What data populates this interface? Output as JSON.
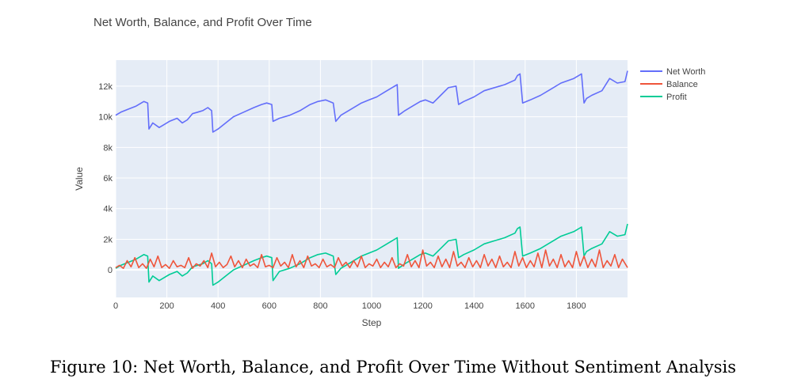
{
  "chart_data": {
    "type": "line",
    "title": "Net Worth, Balance, and Profit Over Time",
    "xlabel": "Step",
    "ylabel": "Value",
    "xlim": [
      0,
      2000
    ],
    "ylim": [
      -1800,
      13700
    ],
    "x_ticks": [
      0,
      200,
      400,
      600,
      800,
      1000,
      1200,
      1400,
      1600,
      1800
    ],
    "y_ticks": [
      0,
      2000,
      4000,
      6000,
      8000,
      10000,
      12000
    ],
    "y_tick_labels": [
      "0",
      "2k",
      "4k",
      "6k",
      "8k",
      "10k",
      "12k"
    ],
    "grid": true,
    "legend_position": "top-right",
    "series": [
      {
        "name": "Net Worth",
        "color": "#636efa",
        "x": [
          0,
          20,
          50,
          80,
          110,
          125,
          130,
          145,
          170,
          190,
          210,
          240,
          260,
          280,
          300,
          320,
          340,
          360,
          375,
          380,
          400,
          430,
          460,
          500,
          540,
          570,
          590,
          610,
          615,
          640,
          680,
          720,
          760,
          790,
          820,
          850,
          860,
          880,
          920,
          960,
          990,
          1020,
          1050,
          1080,
          1100,
          1105,
          1130,
          1160,
          1190,
          1210,
          1240,
          1270,
          1300,
          1330,
          1340,
          1360,
          1400,
          1440,
          1480,
          1520,
          1560,
          1570,
          1580,
          1590,
          1620,
          1660,
          1700,
          1740,
          1790,
          1820,
          1830,
          1840,
          1860,
          1900,
          1930,
          1960,
          1990,
          2000
        ],
        "y": [
          10100,
          10300,
          10500,
          10700,
          11000,
          10900,
          9200,
          9600,
          9300,
          9500,
          9700,
          9900,
          9600,
          9800,
          10200,
          10300,
          10400,
          10600,
          10400,
          9000,
          9200,
          9600,
          10000,
          10300,
          10600,
          10800,
          10900,
          10800,
          9700,
          9900,
          10100,
          10400,
          10800,
          11000,
          11100,
          10900,
          9700,
          10100,
          10500,
          10900,
          11100,
          11300,
          11600,
          11900,
          12100,
          10100,
          10400,
          10700,
          11000,
          11100,
          10900,
          11400,
          11900,
          12000,
          10800,
          11000,
          11300,
          11700,
          11900,
          12100,
          12400,
          12700,
          12800,
          10900,
          11100,
          11400,
          11800,
          12200,
          12500,
          12800,
          10900,
          11200,
          11400,
          11700,
          12500,
          12200,
          12300,
          13000
        ]
      },
      {
        "name": "Balance",
        "color": "#ef553b",
        "x": [
          0,
          15,
          30,
          45,
          60,
          75,
          90,
          105,
          120,
          135,
          150,
          165,
          180,
          195,
          210,
          225,
          240,
          255,
          270,
          285,
          300,
          315,
          330,
          345,
          360,
          375,
          390,
          405,
          420,
          435,
          450,
          465,
          480,
          495,
          510,
          525,
          540,
          555,
          570,
          585,
          600,
          615,
          630,
          645,
          660,
          675,
          690,
          705,
          720,
          735,
          750,
          765,
          780,
          795,
          810,
          825,
          840,
          855,
          870,
          885,
          900,
          915,
          930,
          945,
          960,
          975,
          990,
          1005,
          1020,
          1035,
          1050,
          1065,
          1080,
          1095,
          1110,
          1125,
          1140,
          1155,
          1170,
          1185,
          1200,
          1215,
          1230,
          1245,
          1260,
          1275,
          1290,
          1305,
          1320,
          1335,
          1350,
          1365,
          1380,
          1395,
          1410,
          1425,
          1440,
          1455,
          1470,
          1485,
          1500,
          1515,
          1530,
          1545,
          1560,
          1575,
          1590,
          1605,
          1620,
          1635,
          1650,
          1665,
          1680,
          1695,
          1710,
          1725,
          1740,
          1755,
          1770,
          1785,
          1800,
          1815,
          1830,
          1845,
          1860,
          1875,
          1890,
          1905,
          1920,
          1935,
          1950,
          1965,
          1980,
          2000
        ],
        "y": [
          150,
          300,
          100,
          600,
          200,
          800,
          150,
          400,
          100,
          700,
          200,
          900,
          150,
          350,
          100,
          600,
          200,
          300,
          150,
          800,
          100,
          400,
          250,
          600,
          150,
          1100,
          200,
          500,
          150,
          350,
          900,
          200,
          600,
          150,
          700,
          250,
          400,
          150,
          1000,
          200,
          300,
          150,
          800,
          250,
          500,
          150,
          1000,
          200,
          600,
          150,
          900,
          250,
          400,
          150,
          700,
          200,
          350,
          150,
          800,
          250,
          500,
          150,
          600,
          200,
          900,
          150,
          400,
          250,
          700,
          150,
          500,
          200,
          800,
          150,
          400,
          250,
          1000,
          200,
          600,
          150,
          1300,
          250,
          500,
          150,
          900,
          200,
          700,
          150,
          1200,
          250,
          500,
          150,
          800,
          200,
          600,
          150,
          1000,
          250,
          700,
          150,
          900,
          200,
          500,
          150,
          1200,
          250,
          800,
          150,
          600,
          200,
          1100,
          150,
          1300,
          250,
          700,
          150,
          1000,
          200,
          600,
          150,
          1200,
          250,
          900,
          150,
          700,
          200,
          1300,
          150,
          600,
          250,
          1000,
          150,
          700,
          150
        ]
      },
      {
        "name": "Profit",
        "color": "#00cc96",
        "x": [
          0,
          20,
          50,
          80,
          110,
          125,
          130,
          145,
          170,
          190,
          210,
          240,
          260,
          280,
          300,
          320,
          340,
          360,
          375,
          380,
          400,
          430,
          460,
          500,
          540,
          570,
          590,
          610,
          615,
          640,
          680,
          720,
          760,
          790,
          820,
          850,
          860,
          880,
          920,
          960,
          990,
          1020,
          1050,
          1080,
          1100,
          1105,
          1130,
          1160,
          1190,
          1210,
          1240,
          1270,
          1300,
          1330,
          1340,
          1360,
          1400,
          1440,
          1480,
          1520,
          1560,
          1570,
          1580,
          1590,
          1620,
          1660,
          1700,
          1740,
          1790,
          1820,
          1830,
          1840,
          1860,
          1900,
          1930,
          1960,
          1990,
          2000
        ],
        "y": [
          100,
          300,
          500,
          700,
          1000,
          900,
          -800,
          -400,
          -700,
          -500,
          -300,
          -100,
          -400,
          -200,
          200,
          300,
          400,
          600,
          400,
          -1000,
          -800,
          -400,
          0,
          300,
          600,
          800,
          900,
          800,
          -700,
          -100,
          100,
          400,
          800,
          1000,
          1100,
          900,
          -300,
          100,
          500,
          900,
          1100,
          1300,
          1600,
          1900,
          2100,
          100,
          400,
          700,
          1000,
          1100,
          900,
          1400,
          1900,
          2000,
          800,
          1000,
          1300,
          1700,
          1900,
          2100,
          2400,
          2700,
          2800,
          900,
          1100,
          1400,
          1800,
          2200,
          2500,
          2800,
          900,
          1200,
          1400,
          1700,
          2500,
          2200,
          2300,
          3000
        ]
      }
    ]
  },
  "caption": "Figure 10: Net Worth, Balance, and Profit Over Time Without Sentiment Analysis"
}
